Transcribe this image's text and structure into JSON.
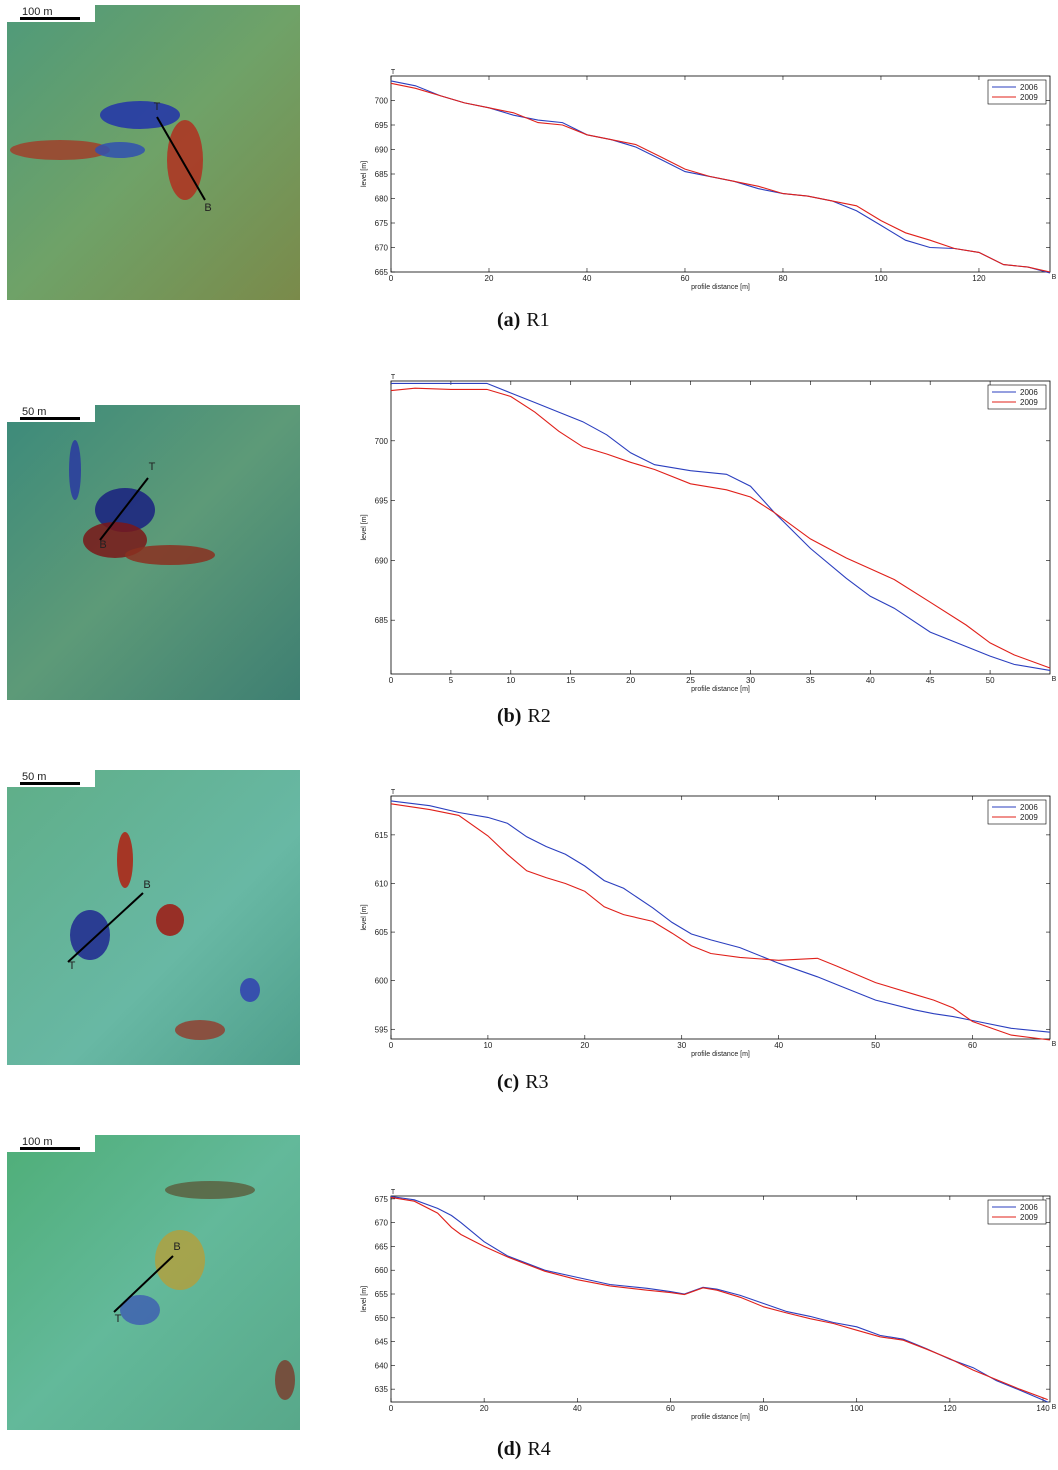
{
  "chart_data": [
    {
      "type": "line",
      "caption_label": "(a)",
      "caption": "R1",
      "xlabel": "profile distance [m]",
      "ylabel": "level [m]",
      "start_label": "T",
      "end_label": "B",
      "x": [
        0,
        5,
        10,
        15,
        20,
        25,
        30,
        35,
        40,
        45,
        50,
        55,
        60,
        65,
        70,
        75,
        80,
        85,
        90,
        95,
        100,
        105,
        110,
        115,
        120,
        125,
        130,
        134.5
      ],
      "series": [
        {
          "name": "2006",
          "color": "#2b3fbf",
          "values": [
            704,
            703,
            701,
            699.5,
            698.5,
            697,
            696,
            695.5,
            693,
            692,
            690.5,
            688,
            685.5,
            684.5,
            683.5,
            682,
            681,
            680.5,
            679.5,
            677.5,
            674.5,
            671.5,
            670,
            669.8,
            669,
            666.5,
            666,
            664.8
          ]
        },
        {
          "name": "2009",
          "color": "#e0201a",
          "values": [
            703.5,
            702.5,
            701,
            699.5,
            698.5,
            697.5,
            695.5,
            695,
            693,
            692,
            691,
            688.5,
            686,
            684.5,
            683.5,
            682.5,
            681,
            680.5,
            679.5,
            678.5,
            675.5,
            673,
            671.5,
            669.8,
            669,
            666.5,
            666,
            665
          ]
        }
      ],
      "xlim": [
        0,
        134.5
      ],
      "ylim": [
        665,
        705
      ],
      "xticks": [
        0,
        20,
        40,
        60,
        80,
        100,
        120
      ],
      "yticks": [
        665,
        670,
        675,
        680,
        685,
        690,
        695,
        700
      ],
      "legend": "upper right"
    },
    {
      "type": "line",
      "caption_label": "(b)",
      "caption": "R2",
      "xlabel": "profile distance [m]",
      "ylabel": "level [m]",
      "start_label": "T",
      "end_label": "B",
      "x": [
        0,
        2,
        5,
        8,
        10,
        12,
        14,
        16,
        18,
        20,
        22,
        25,
        28,
        30,
        32,
        35,
        38,
        40,
        42,
        45,
        48,
        50,
        52,
        55
      ],
      "series": [
        {
          "name": "2006",
          "color": "#2b3fbf",
          "values": [
            704.8,
            704.8,
            704.8,
            704.8,
            704,
            703.2,
            702.4,
            701.6,
            700.5,
            699,
            698,
            697.5,
            697.2,
            696.2,
            694,
            691,
            688.5,
            687,
            686,
            684,
            682.8,
            682,
            681.3,
            680.8
          ]
        },
        {
          "name": "2009",
          "color": "#e0201a",
          "values": [
            704.2,
            704.4,
            704.3,
            704.3,
            703.7,
            702.4,
            700.8,
            699.5,
            698.9,
            698.2,
            697.6,
            696.4,
            695.9,
            695.3,
            694,
            691.8,
            690.2,
            689.3,
            688.4,
            686.5,
            684.6,
            683.1,
            682.1,
            681
          ]
        }
      ],
      "xlim": [
        0,
        55
      ],
      "ylim": [
        680.5,
        705
      ],
      "xticks": [
        0,
        5,
        10,
        15,
        20,
        25,
        30,
        35,
        40,
        45,
        50
      ],
      "yticks": [
        685,
        690,
        695,
        700
      ],
      "legend": "upper right"
    },
    {
      "type": "line",
      "caption_label": "(c)",
      "caption": "R3",
      "xlabel": "profile distance [m]",
      "ylabel": "level [m]",
      "start_label": "T",
      "end_label": "B",
      "x": [
        0,
        4,
        7,
        10,
        12,
        14,
        16,
        18,
        20,
        22,
        24,
        27,
        29,
        31,
        33,
        36,
        40,
        44,
        46,
        50,
        54,
        56,
        58,
        60,
        64,
        68
      ],
      "series": [
        {
          "name": "2006",
          "color": "#2b3fbf",
          "values": [
            618.5,
            618,
            617.3,
            616.8,
            616.2,
            614.8,
            613.8,
            613,
            611.8,
            610.3,
            609.5,
            607.5,
            606,
            604.8,
            604.2,
            603.4,
            601.8,
            600.4,
            599.6,
            598,
            597,
            596.6,
            596.3,
            595.9,
            595.1,
            594.7
          ]
        },
        {
          "name": "2009",
          "color": "#e0201a",
          "values": [
            618.2,
            617.6,
            617,
            614.9,
            613,
            611.3,
            610.6,
            610,
            609.2,
            607.6,
            606.8,
            606.1,
            604.9,
            603.6,
            602.8,
            602.4,
            602.1,
            602.3,
            601.5,
            599.8,
            598.6,
            598,
            597.2,
            595.8,
            594.4,
            593.9
          ]
        }
      ],
      "xlim": [
        0,
        68
      ],
      "ylim": [
        594,
        619
      ],
      "xticks": [
        0,
        10,
        20,
        30,
        40,
        50,
        60
      ],
      "yticks": [
        595,
        600,
        605,
        610,
        615
      ],
      "legend": "upper right"
    },
    {
      "type": "line",
      "caption_label": "(d)",
      "caption": "R4",
      "xlabel": "profile distance [m]",
      "ylabel": "level [m]",
      "start_label": "T",
      "end_label": "B",
      "x": [
        0,
        5,
        10,
        13,
        15,
        20,
        25,
        33,
        40,
        47,
        55,
        60,
        63,
        67,
        70,
        75,
        80,
        85,
        90,
        95,
        100,
        105,
        110,
        115,
        120,
        125,
        130,
        135,
        141
      ],
      "series": [
        {
          "name": "2006",
          "color": "#2b3fbf",
          "values": [
            675.5,
            674.8,
            673,
            671.5,
            670,
            666,
            663,
            660,
            658.5,
            657,
            656.2,
            655.5,
            655,
            656.4,
            656,
            654.7,
            653,
            651.3,
            650.3,
            649,
            648.1,
            646.3,
            645.5,
            643.5,
            641.3,
            639.5,
            636.8,
            634.8,
            632.3
          ]
        },
        {
          "name": "2009",
          "color": "#e0201a",
          "values": [
            675.3,
            674.5,
            672,
            669,
            667.5,
            665,
            662.8,
            659.8,
            658,
            656.7,
            655.8,
            655.3,
            654.9,
            656.3,
            655.8,
            654.3,
            652.3,
            651,
            649.8,
            648.8,
            647.4,
            646,
            645.3,
            643.4,
            641.4,
            639,
            637,
            635,
            632.8
          ]
        }
      ],
      "xlim": [
        0,
        141.5
      ],
      "ylim": [
        632.3,
        675.6
      ],
      "xticks": [
        0,
        20,
        40,
        60,
        80,
        100,
        120,
        140
      ],
      "yticks": [
        635,
        640,
        645,
        650,
        655,
        660,
        665,
        670,
        675
      ],
      "legend": "upper right"
    }
  ],
  "maps": [
    {
      "scale": "100 m",
      "start": "T",
      "end": "B"
    },
    {
      "scale": "50 m",
      "start": "T",
      "end": "B"
    },
    {
      "scale": "50 m",
      "start": "T",
      "end": "B"
    },
    {
      "scale": "100 m",
      "start": "T",
      "end": "B"
    }
  ]
}
